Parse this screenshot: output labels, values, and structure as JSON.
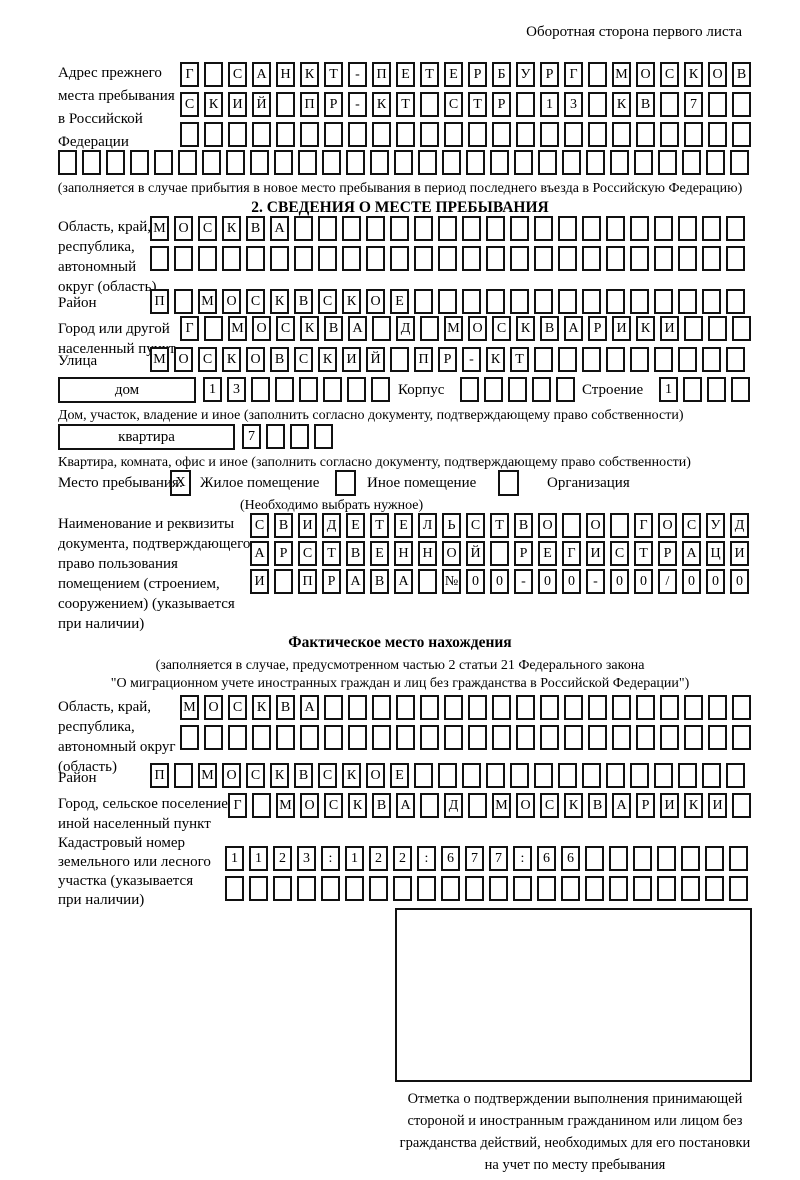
{
  "header": {
    "note": "Оборотная сторона первого листа"
  },
  "prev_address": {
    "label_lines": [
      "Адрес прежнего",
      "места пребывания",
      "в Российской",
      "Федерации"
    ],
    "rows": [
      {
        "text": "Г САНКТ-ПЕТЕРБУРГ МОСКОВ",
        "count": 24
      },
      {
        "text": "СКИЙ ПР-КТ СТР 13 КВ 7",
        "count": 24
      },
      {
        "text": "",
        "count": 24
      },
      {
        "text": "",
        "count": 29
      }
    ],
    "note": "(заполняется в случае прибытия в новое место пребывания в период последнего въезда в Российскую Федерацию)"
  },
  "section2": {
    "title": "2. СВЕДЕНИЯ О МЕСТЕ ПРЕБЫВАНИЯ",
    "region": {
      "label_lines": [
        "Область, край,",
        "республика,",
        "автономный",
        "округ (область)"
      ],
      "rows": [
        {
          "text": "МОСКВА",
          "count": 25
        },
        {
          "text": "",
          "count": 25
        }
      ]
    },
    "district": {
      "label": "Район",
      "row": {
        "text": "П МОСКВСКОЕ",
        "count": 25
      }
    },
    "city": {
      "label_lines": [
        "Город или другой",
        "населенный пункт"
      ],
      "row": {
        "text": "Г МОСКВА Д МОСКВАРИКИ",
        "count": 24
      }
    },
    "street": {
      "label": "Улица",
      "row": {
        "text": "МОСКОВСКИЙ ПР-КТ",
        "count": 25
      }
    },
    "house": {
      "box_label": "дом",
      "number": {
        "text": "13",
        "count": 8
      },
      "korpus_label": "Корпус",
      "korpus": {
        "text": "",
        "count": 5
      },
      "stroenie_label": "Строение",
      "stroenie": {
        "text": "1",
        "count": 4
      },
      "note": "Дом, участок, владение и иное (заполнить согласно документу, подтверждающему право собственности)"
    },
    "apartment": {
      "box_label": "квартира",
      "number": {
        "text": "7",
        "count": 4
      },
      "note": "Квартира, комната, офис и иное (заполнить согласно документу, подтверждающему право собственности)"
    },
    "stay_type": {
      "label": "Место пребывания:",
      "options": [
        {
          "mark": "X",
          "label": "Жилое помещение"
        },
        {
          "mark": "",
          "label": "Иное помещение"
        },
        {
          "mark": "",
          "label": "Организация"
        }
      ],
      "note": "(Необходимо выбрать нужное)"
    },
    "document": {
      "label_lines": [
        "Наименование и реквизиты",
        "документа, подтверждающего",
        "право пользования",
        "помещением (строением,",
        "сооружением) (указывается",
        "при наличии)"
      ],
      "rows": [
        {
          "text": "СВИДЕТЕЛЬСТВО О ГОСУД",
          "count": 21
        },
        {
          "text": "АРСТВЕННОЙ РЕГИСТРАЦИ",
          "count": 21
        },
        {
          "text": "И ПРАВА №00-00-00/000",
          "count": 21
        }
      ]
    }
  },
  "actual_location": {
    "title": "Фактическое место нахождения",
    "note_lines": [
      "(заполняется в случае, предусмотренном частью 2 статьи 21 Федерального закона",
      "\"О миграционном учете иностранных граждан и лиц без гражданства в Российской Федерации\")"
    ],
    "region": {
      "label_lines": [
        "Область, край,",
        "республика,",
        "автономный округ",
        "(область)"
      ],
      "rows": [
        {
          "text": "МОСКВА",
          "count": 24
        },
        {
          "text": "",
          "count": 24
        }
      ]
    },
    "district": {
      "label": "Район",
      "row": {
        "text": "П МОСКВСКОЕ",
        "count": 25
      }
    },
    "city": {
      "label_lines": [
        "Город, сельское поселение,",
        "иной населенный пункт"
      ],
      "row": {
        "text": "Г МОСКВА Д МОСКВАРИКИ",
        "count": 22
      }
    },
    "cadastral": {
      "label_lines": [
        "Кадастровый номер",
        "земельного или лесного",
        "участка (указывается",
        "при наличии)"
      ],
      "rows": [
        {
          "text": "1123:122:677:66",
          "count": 22
        },
        {
          "text": "",
          "count": 22
        }
      ]
    },
    "stamp_box_caption_lines": [
      "Отметка о подтверждении выполнения принимающей",
      "стороной и иностранным гражданином или лицом без",
      "гражданства действий, необходимых для его постановки",
      "на учет по месту пребывания"
    ]
  }
}
